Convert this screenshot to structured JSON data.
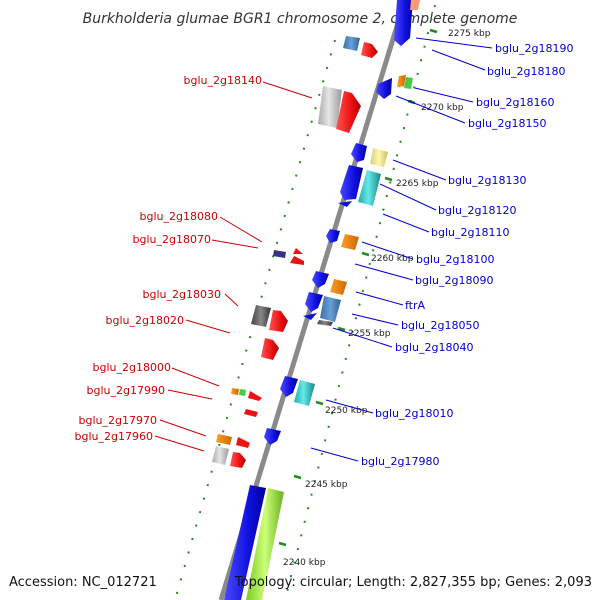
{
  "title": "Burkholderia glumae BGR1 chromosome 2, complete genome",
  "footer": {
    "accession": "Accession: NC_012721",
    "topology": "Topology: circular; Length: 2,827,355 bp; Genes: 2,093"
  },
  "colors": {
    "plus_label": "#0000cc",
    "minus_label": "#cc0000",
    "backbone": "#888888",
    "ruler": "#228b22",
    "blue": "#1a1aee",
    "red": "#ee1111",
    "gray": "#c8c8c8",
    "cyan": "#33cccc",
    "orange": "#ff8c00",
    "steel": "#4a86c5",
    "lightyellow": "#f0e68c",
    "green": "#44cc44",
    "darkgray": "#666666",
    "navy": "#333388",
    "lime": "#a6e84a"
  },
  "kbp_labels": [
    "2240 kbp",
    "2245 kbp",
    "2250 kbp",
    "2255 kbp",
    "2260 kbp",
    "2265 kbp",
    "2270 kbp",
    "2275 kbp"
  ],
  "genes_plus": [
    {
      "name": "bglu_2g18190"
    },
    {
      "name": "bglu_2g18180"
    },
    {
      "name": "bglu_2g18160"
    },
    {
      "name": "bglu_2g18150"
    },
    {
      "name": "bglu_2g18130"
    },
    {
      "name": "bglu_2g18120"
    },
    {
      "name": "bglu_2g18110"
    },
    {
      "name": "bglu_2g18100"
    },
    {
      "name": "bglu_2g18090"
    },
    {
      "name": "ftrA"
    },
    {
      "name": "bglu_2g18050"
    },
    {
      "name": "bglu_2g18040"
    },
    {
      "name": "bglu_2g18010"
    },
    {
      "name": "bglu_2g17980"
    }
  ],
  "genes_minus": [
    {
      "name": "bglu_2g18140"
    },
    {
      "name": "bglu_2g18080"
    },
    {
      "name": "bglu_2g18070"
    },
    {
      "name": "bglu_2g18030"
    },
    {
      "name": "bglu_2g18020"
    },
    {
      "name": "bglu_2g18000"
    },
    {
      "name": "bglu_2g17990"
    },
    {
      "name": "bglu_2g17970"
    },
    {
      "name": "bglu_2g17960"
    }
  ]
}
